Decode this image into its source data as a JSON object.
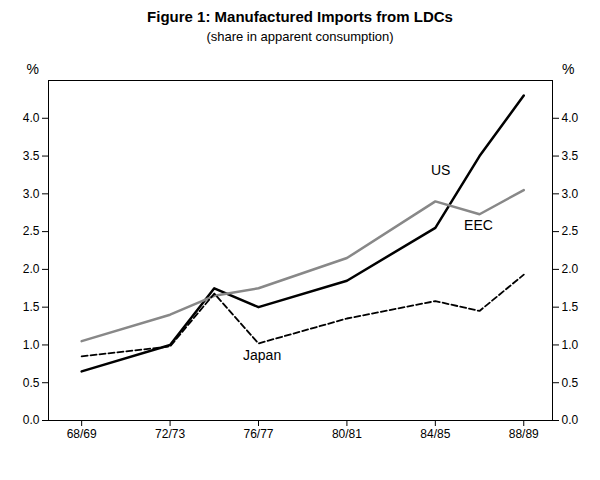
{
  "chart_data": {
    "type": "line",
    "title": "Figure 1: Manufactured Imports from LDCs",
    "subtitle": "(share in apparent consumption)",
    "x": [
      1968.5,
      1972.5,
      1974.5,
      1976.5,
      1980.5,
      1984.5,
      1986.5,
      1988.5
    ],
    "series": [
      {
        "name": "US",
        "color": "#000000",
        "line_style": "solid",
        "values": [
          0.65,
          1.0,
          1.75,
          1.5,
          1.85,
          2.55,
          3.5,
          4.3
        ]
      },
      {
        "name": "EEC",
        "color": "#888888",
        "line_style": "solid",
        "values": [
          1.05,
          1.4,
          1.65,
          1.75,
          2.15,
          2.9,
          2.73,
          3.05
        ]
      },
      {
        "name": "Japan",
        "color": "#000000",
        "line_style": "dashed",
        "values": [
          0.85,
          0.98,
          1.68,
          1.02,
          1.35,
          1.58,
          1.45,
          1.93
        ]
      }
    ],
    "xlim": [
      1967.0,
      1989.8
    ],
    "xticks": [
      {
        "value": 1968.5,
        "label": "68/69"
      },
      {
        "value": 1972.5,
        "label": "72/73"
      },
      {
        "value": 1976.5,
        "label": "76/77"
      },
      {
        "value": 1980.5,
        "label": "80/81"
      },
      {
        "value": 1984.5,
        "label": "84/85"
      },
      {
        "value": 1988.5,
        "label": "88/89"
      }
    ],
    "ylabel": "%",
    "ylim": [
      0,
      4.5
    ],
    "yticks": [
      {
        "value": 0,
        "label": "0.0"
      },
      {
        "value": 0.5,
        "label": "0.5"
      },
      {
        "value": 1.0,
        "label": "1.0"
      },
      {
        "value": 1.5,
        "label": "1.5"
      },
      {
        "value": 2.0,
        "label": "2.0"
      },
      {
        "value": 2.5,
        "label": "2.5"
      },
      {
        "value": 3.0,
        "label": "3.0"
      },
      {
        "value": 3.5,
        "label": "3.5"
      },
      {
        "value": 4.0,
        "label": "4.0"
      }
    ],
    "y2label": "%",
    "y2lim": [
      0,
      4.5
    ],
    "y2ticks": [
      {
        "value": 0,
        "label": "0.0"
      },
      {
        "value": 0.5,
        "label": "0.5"
      },
      {
        "value": 1.0,
        "label": "1.0"
      },
      {
        "value": 1.5,
        "label": "1.5"
      },
      {
        "value": 2.0,
        "label": "2.0"
      },
      {
        "value": 2.5,
        "label": "2.5"
      },
      {
        "value": 3.0,
        "label": "3.0"
      },
      {
        "value": 3.5,
        "label": "3.5"
      },
      {
        "value": 4.0,
        "label": "4.0"
      }
    ],
    "annotations": [
      {
        "text": "US",
        "x": 1984.3,
        "y": 3.25
      },
      {
        "text": "EEC",
        "x": 1985.8,
        "y": 2.52
      },
      {
        "text": "Japan",
        "x": 1975.8,
        "y": 0.8
      }
    ],
    "grid": false
  }
}
